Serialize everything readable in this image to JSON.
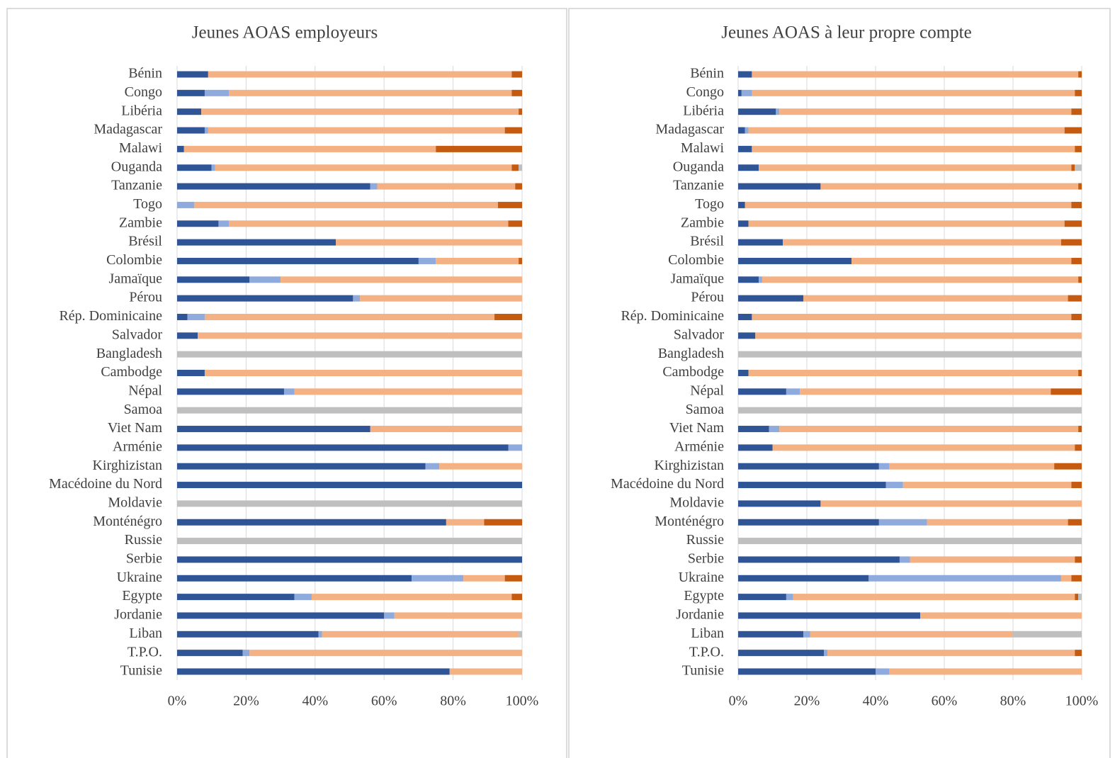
{
  "chart_data": [
    {
      "type": "bar",
      "horizontal": true,
      "stacked": true,
      "title": "Jeunes AOAS employeurs",
      "categories": [
        "Bénin",
        "Congo",
        "Libéria",
        "Madagascar",
        "Malawi",
        "Ouganda",
        "Tanzanie",
        "Togo",
        "Zambie",
        "Brésil",
        "Colombie",
        "Jamaïque",
        "Pérou",
        "Rép. Dominicaine",
        "Salvador",
        "Bangladesh",
        "Cambodge",
        "Népal",
        "Samoa",
        "Viet Nam",
        "Arménie",
        "Kirghizistan",
        "Macédoine du Nord",
        "Moldavie",
        "Monténégro",
        "Russie",
        "Serbie",
        "Ukraine",
        "Egypte",
        "Jordanie",
        "Liban",
        "T.P.O.",
        "Tunisie"
      ],
      "series": [
        {
          "color": "#2f5597",
          "values": [
            9,
            8,
            7,
            8,
            2,
            10,
            56,
            0,
            12,
            46,
            70,
            21,
            51,
            3,
            6,
            0,
            8,
            31,
            0,
            56,
            96,
            72,
            100,
            0,
            78,
            0,
            100,
            68,
            34,
            60,
            41,
            19,
            79
          ]
        },
        {
          "color": "#8faadc",
          "values": [
            0,
            7,
            0,
            1,
            0,
            1,
            2,
            5,
            3,
            0,
            5,
            9,
            2,
            5,
            0,
            0,
            0,
            3,
            0,
            0,
            4,
            4,
            0,
            0,
            0,
            0,
            0,
            15,
            5,
            3,
            1,
            2,
            0
          ]
        },
        {
          "color": "#f4b183",
          "values": [
            88,
            82,
            92,
            86,
            73,
            86,
            40,
            88,
            81,
            54,
            24,
            70,
            47,
            84,
            94,
            0,
            92,
            66,
            0,
            44,
            0,
            24,
            0,
            0,
            11,
            0,
            0,
            12,
            58,
            37,
            57,
            79,
            21
          ]
        },
        {
          "color": "#c55a11",
          "values": [
            3,
            3,
            1,
            5,
            25,
            2,
            2,
            7,
            4,
            0,
            1,
            0,
            0,
            8,
            0,
            0,
            0,
            0,
            0,
            0,
            0,
            0,
            0,
            0,
            11,
            0,
            0,
            5,
            3,
            0,
            0,
            0,
            0
          ]
        },
        {
          "color": "#bfbfbf",
          "values": [
            0,
            0,
            0,
            0,
            0,
            1,
            0,
            0,
            0,
            0,
            0,
            0,
            0,
            0,
            0,
            100,
            0,
            0,
            100,
            0,
            0,
            0,
            0,
            100,
            0,
            100,
            0,
            0,
            0,
            0,
            1,
            0,
            0
          ]
        }
      ],
      "xlim": [
        0,
        100
      ],
      "xticks": [
        {
          "value": 0,
          "label": "0%"
        },
        {
          "value": 20,
          "label": "20%"
        },
        {
          "value": 40,
          "label": "40%"
        },
        {
          "value": 60,
          "label": "60%"
        },
        {
          "value": 80,
          "label": "80%"
        },
        {
          "value": 100,
          "label": "100%"
        }
      ],
      "grid": true
    },
    {
      "type": "bar",
      "horizontal": true,
      "stacked": true,
      "title": "Jeunes AOAS à leur propre compte",
      "categories": [
        "Bénin",
        "Congo",
        "Libéria",
        "Madagascar",
        "Malawi",
        "Ouganda",
        "Tanzanie",
        "Togo",
        "Zambie",
        "Brésil",
        "Colombie",
        "Jamaïque",
        "Pérou",
        "Rép. Dominicaine",
        "Salvador",
        "Bangladesh",
        "Cambodge",
        "Népal",
        "Samoa",
        "Viet Nam",
        "Arménie",
        "Kirghizistan",
        "Macédoine du Nord",
        "Moldavie",
        "Monténégro",
        "Russie",
        "Serbie",
        "Ukraine",
        "Egypte",
        "Jordanie",
        "Liban",
        "T.P.O.",
        "Tunisie"
      ],
      "series": [
        {
          "color": "#2f5597",
          "values": [
            4,
            1,
            11,
            2,
            4,
            6,
            24,
            2,
            3,
            13,
            33,
            6,
            19,
            4,
            5,
            0,
            3,
            14,
            0,
            9,
            10,
            41,
            43,
            24,
            41,
            0,
            47,
            38,
            14,
            53,
            19,
            25,
            40
          ]
        },
        {
          "color": "#8faadc",
          "values": [
            0,
            3,
            1,
            1,
            0,
            0,
            0,
            0,
            0,
            0,
            0,
            1,
            0,
            0,
            0,
            0,
            0,
            4,
            0,
            3,
            0,
            3,
            5,
            0,
            14,
            0,
            3,
            56,
            2,
            0,
            2,
            1,
            4
          ]
        },
        {
          "color": "#f4b183",
          "values": [
            95,
            94,
            85,
            92,
            94,
            91,
            75,
            95,
            92,
            81,
            64,
            92,
            77,
            93,
            95,
            0,
            96,
            73,
            0,
            87,
            88,
            48,
            49,
            76,
            41,
            0,
            48,
            3,
            82,
            47,
            59,
            72,
            56
          ]
        },
        {
          "color": "#c55a11",
          "values": [
            1,
            2,
            3,
            5,
            2,
            1,
            1,
            3,
            5,
            6,
            3,
            1,
            4,
            3,
            0,
            0,
            1,
            9,
            0,
            1,
            2,
            8,
            3,
            0,
            4,
            0,
            2,
            3,
            1,
            0,
            0,
            2,
            0
          ]
        },
        {
          "color": "#bfbfbf",
          "values": [
            0,
            0,
            0,
            0,
            0,
            2,
            0,
            0,
            0,
            0,
            0,
            0,
            0,
            0,
            0,
            100,
            0,
            0,
            100,
            0,
            0,
            0,
            0,
            0,
            0,
            100,
            0,
            0,
            1,
            0,
            20,
            0,
            0
          ]
        }
      ],
      "xlim": [
        0,
        100
      ],
      "xticks": [
        {
          "value": 0,
          "label": "0%"
        },
        {
          "value": 20,
          "label": "20%"
        },
        {
          "value": 40,
          "label": "40%"
        },
        {
          "value": 60,
          "label": "60%"
        },
        {
          "value": 80,
          "label": "80%"
        },
        {
          "value": 100,
          "label": "100%"
        }
      ],
      "grid": true
    }
  ]
}
